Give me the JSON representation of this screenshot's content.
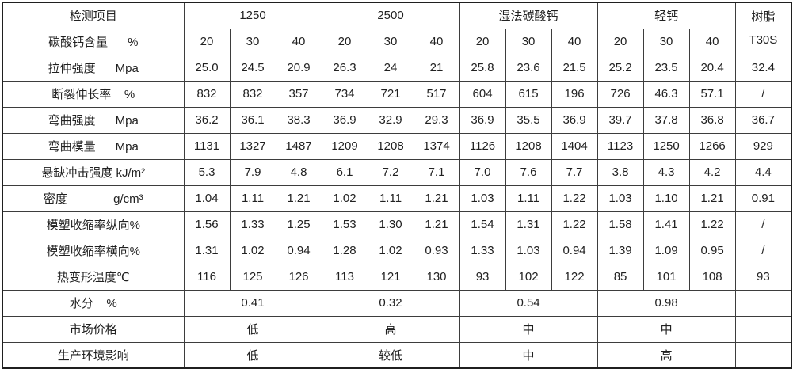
{
  "table": {
    "border_color": "#3d3d3d",
    "outer_border_color": "#1f1f1f",
    "text_color": "#212121",
    "background_color": "#ffffff",
    "header": {
      "corner_label": "检测项目",
      "groups": [
        {
          "label": "1250",
          "span": 3
        },
        {
          "label": "2500",
          "span": 3
        },
        {
          "label": "湿法碳酸钙",
          "span": 3
        },
        {
          "label": "轻钙",
          "span": 3
        }
      ],
      "resin_line1": "树脂",
      "resin_line2": "T30S",
      "content_row_label": "碳酸钙含量      %",
      "content_values": [
        "20",
        "30",
        "40",
        "20",
        "30",
        "40",
        "20",
        "30",
        "40",
        "20",
        "30",
        "40"
      ]
    },
    "rows": [
      {
        "label": "拉伸强度      Mpa",
        "values": [
          "25.0",
          "24.5",
          "20.9",
          "26.3",
          "24",
          "21",
          "25.8",
          "23.6",
          "21.5",
          "25.2",
          "23.5",
          "20.4"
        ],
        "resin": "32.4"
      },
      {
        "label": "断裂伸长率    %",
        "values": [
          "832",
          "832",
          "357",
          "734",
          "721",
          "517",
          "604",
          "615",
          "196",
          "726",
          "46.3",
          "57.1"
        ],
        "resin": "/"
      },
      {
        "label": "弯曲强度      Mpa",
        "values": [
          "36.2",
          "36.1",
          "38.3",
          "36.9",
          "32.9",
          "29.3",
          "36.9",
          "35.5",
          "36.9",
          "39.7",
          "37.8",
          "36.8"
        ],
        "resin": "36.7"
      },
      {
        "label": "弯曲模量      Mpa",
        "values": [
          "1131",
          "1327",
          "1487",
          "1209",
          "1208",
          "1374",
          "1126",
          "1208",
          "1404",
          "1123",
          "1250",
          "1266"
        ],
        "resin": "929"
      },
      {
        "label": "悬缺冲击强度 kJ/m²",
        "values": [
          "5.3",
          "7.9",
          "4.8",
          "6.1",
          "7.2",
          "7.1",
          "7.0",
          "7.6",
          "7.7",
          "3.8",
          "4.3",
          "4.2"
        ],
        "resin": "4.4"
      },
      {
        "label": "密度              g/cm³",
        "values": [
          "1.04",
          "1.11",
          "1.21",
          "1.02",
          "1.11",
          "1.21",
          "1.03",
          "1.11",
          "1.22",
          "1.03",
          "1.10",
          "1.21"
        ],
        "resin": "0.91"
      },
      {
        "label": "模塑收缩率纵向%",
        "values": [
          "1.56",
          "1.33",
          "1.25",
          "1.53",
          "1.30",
          "1.21",
          "1.54",
          "1.31",
          "1.22",
          "1.58",
          "1.41",
          "1.22"
        ],
        "resin": "/"
      },
      {
        "label": "模塑收缩率横向%",
        "values": [
          "1.31",
          "1.02",
          "0.94",
          "1.28",
          "1.02",
          "0.93",
          "1.33",
          "1.03",
          "0.94",
          "1.39",
          "1.09",
          "0.95"
        ],
        "resin": "/"
      },
      {
        "label": "热变形温度℃",
        "values": [
          "116",
          "125",
          "126",
          "113",
          "121",
          "130",
          "93",
          "102",
          "122",
          "85",
          "101",
          "108"
        ],
        "resin": "93"
      }
    ],
    "merged_rows": [
      {
        "label": "水分    %",
        "values": [
          "0.41",
          "0.32",
          "0.54",
          "0.98"
        ],
        "resin": ""
      },
      {
        "label": "市场价格",
        "values": [
          "低",
          "高",
          "中",
          "中"
        ],
        "resin": ""
      },
      {
        "label": "生产环境影响",
        "values": [
          "低",
          "较低",
          "中",
          "高"
        ],
        "resin": ""
      }
    ]
  }
}
